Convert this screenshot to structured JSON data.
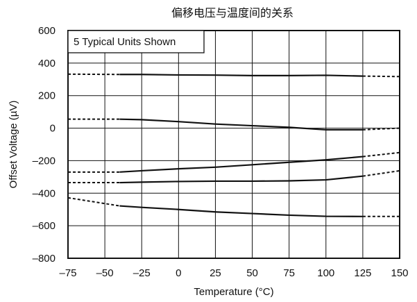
{
  "chart_data": {
    "type": "line",
    "title": "偏移电压与温度间的关系",
    "xlabel": "Temperature (°C)",
    "ylabel": "Offset Voltage (µV)",
    "annotation": "5 Typical Units Shown",
    "xlim": [
      -75,
      150
    ],
    "ylim": [
      -800,
      600
    ],
    "xticks": [
      -75,
      -50,
      -25,
      0,
      25,
      50,
      75,
      100,
      125,
      150
    ],
    "xtick_labels": [
      "–75",
      "–50",
      "–25",
      "0",
      "25",
      "50",
      "75",
      "100",
      "125",
      "150"
    ],
    "yticks": [
      600,
      400,
      200,
      0,
      -200,
      -400,
      -600,
      -800
    ],
    "ytick_labels": [
      "600",
      "400",
      "200",
      "0",
      "–200",
      "–400",
      "–600",
      "–800"
    ],
    "grid": true,
    "legend": "none",
    "color": "#111111",
    "series": [
      {
        "solid_x": [
          -40,
          -25,
          0,
          25,
          50,
          75,
          100,
          125
        ],
        "solid_y": [
          330,
          330,
          327,
          326,
          323,
          323,
          325,
          320
        ],
        "dashed_left": [
          [
            -75,
            332
          ],
          [
            -40,
            330
          ]
        ],
        "dashed_right": [
          [
            125,
            320
          ],
          [
            150,
            317
          ]
        ]
      },
      {
        "solid_x": [
          -40,
          -25,
          0,
          25,
          50,
          75,
          100,
          125
        ],
        "solid_y": [
          55,
          52,
          40,
          25,
          15,
          5,
          -10,
          -10
        ],
        "dashed_left": [
          [
            -75,
            55
          ],
          [
            -40,
            55
          ]
        ],
        "dashed_right": [
          [
            125,
            -10
          ],
          [
            150,
            0
          ]
        ]
      },
      {
        "solid_x": [
          -40,
          -25,
          0,
          25,
          50,
          75,
          100,
          125
        ],
        "solid_y": [
          -270,
          -262,
          -250,
          -240,
          -225,
          -210,
          -195,
          -175
        ],
        "dashed_left": [
          [
            -75,
            -270
          ],
          [
            -40,
            -270
          ]
        ],
        "dashed_right": [
          [
            125,
            -175
          ],
          [
            150,
            -150
          ]
        ]
      },
      {
        "solid_x": [
          -40,
          -25,
          0,
          25,
          50,
          75,
          100,
          125
        ],
        "solid_y": [
          -335,
          -332,
          -328,
          -326,
          -326,
          -324,
          -318,
          -295
        ],
        "dashed_left": [
          [
            -75,
            -335
          ],
          [
            -40,
            -335
          ]
        ],
        "dashed_right": [
          [
            125,
            -295
          ],
          [
            150,
            -262
          ]
        ]
      },
      {
        "solid_x": [
          -40,
          -25,
          0,
          25,
          50,
          75,
          100,
          125
        ],
        "solid_y": [
          -478,
          -487,
          -500,
          -515,
          -525,
          -535,
          -542,
          -543
        ],
        "dashed_left": [
          [
            -75,
            -428
          ],
          [
            -40,
            -478
          ]
        ],
        "dashed_right": [
          [
            125,
            -543
          ],
          [
            150,
            -543
          ]
        ]
      }
    ]
  }
}
